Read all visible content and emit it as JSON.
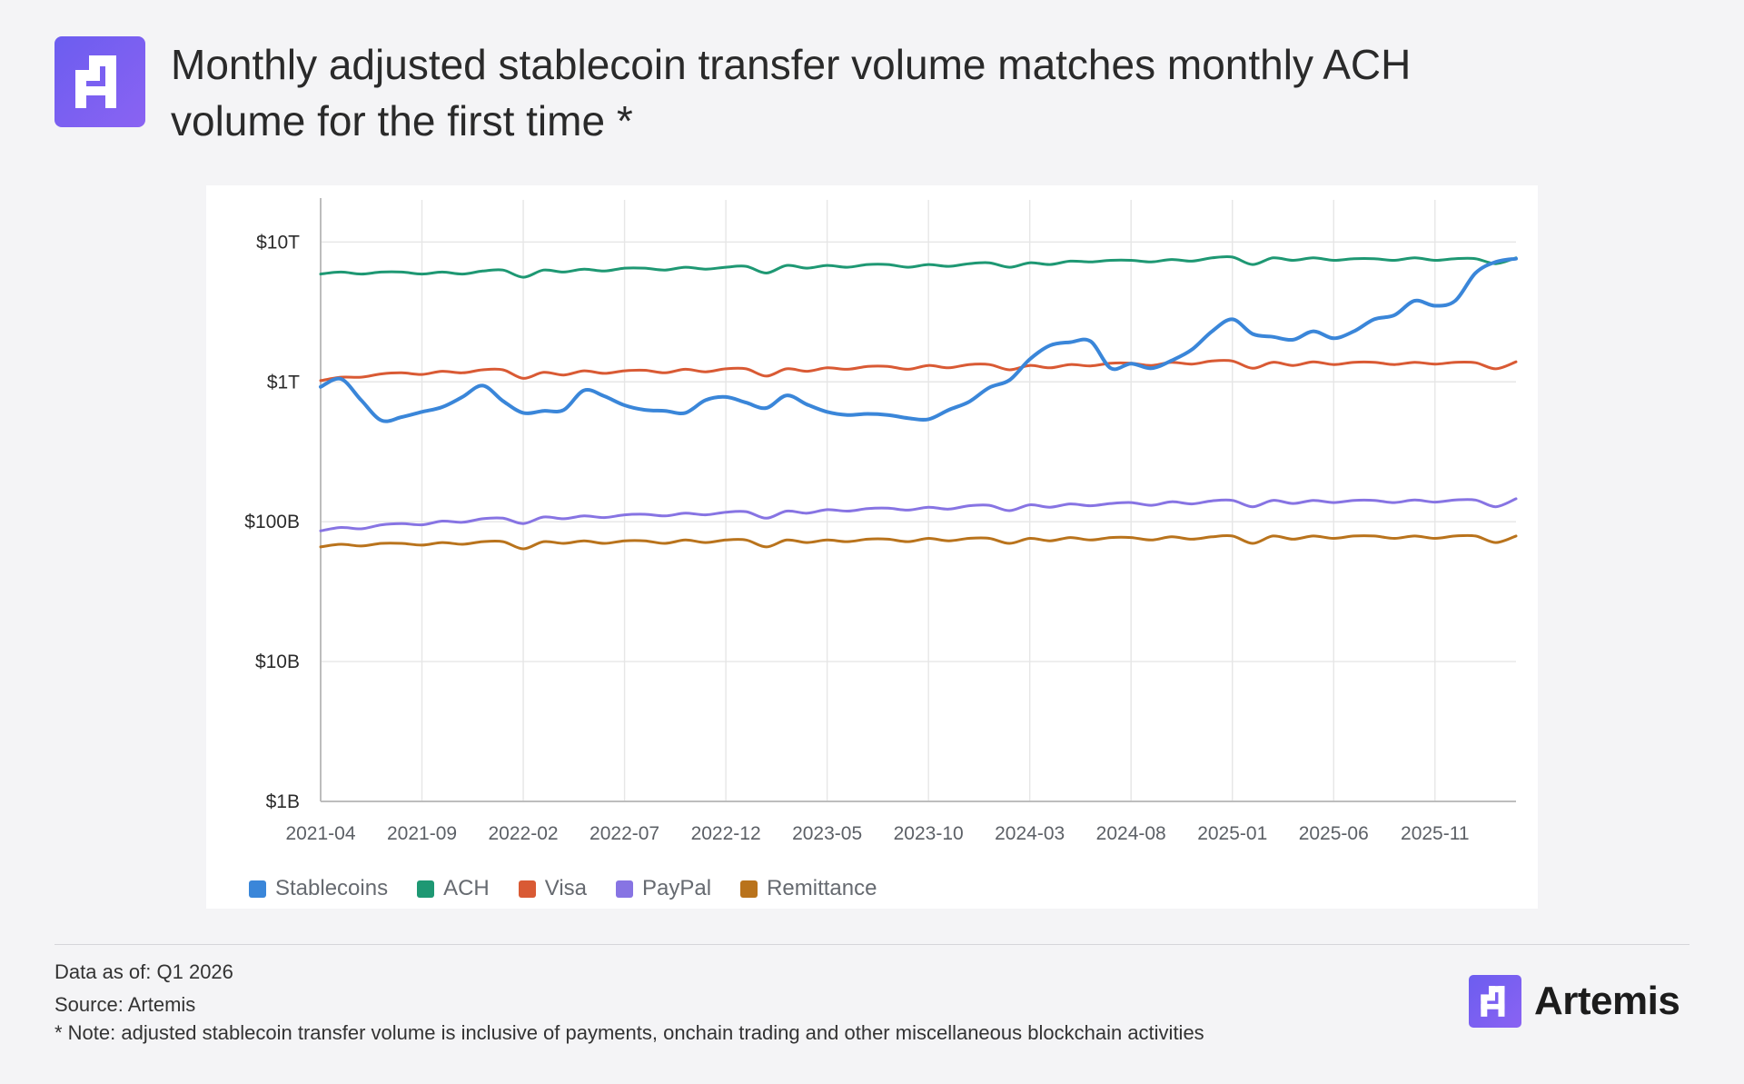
{
  "header": {
    "title": "Monthly adjusted stablecoin transfer volume matches monthly ACH\n volume for the first time *"
  },
  "brand": {
    "name": "Artemis",
    "accent": "#7b5cf0"
  },
  "footer": {
    "data_as_of": "Data as of: Q1 2026",
    "source": "Source: Artemis",
    "note": "* Note: adjusted stablecoin transfer volume is inclusive of payments, onchain trading and other miscellaneous blockchain activities"
  },
  "chart_data": {
    "type": "line",
    "title": "Monthly adjusted stablecoin transfer volume matches monthly ACH volume for the first time *",
    "xlabel": "",
    "ylabel": "",
    "y_scale": "log",
    "ylim": [
      1000000000,
      20000000000000
    ],
    "grid": true,
    "legend_position": "bottom-left",
    "y_ticks": [
      {
        "value": 1000000000,
        "label": "$1B"
      },
      {
        "value": 10000000000,
        "label": "$10B"
      },
      {
        "value": 100000000000,
        "label": "$100B"
      },
      {
        "value": 1000000000000,
        "label": "$1T"
      },
      {
        "value": 10000000000000,
        "label": "$10T"
      }
    ],
    "x_tick_labels": [
      "2021-04",
      "2021-09",
      "2022-02",
      "2022-07",
      "2022-12",
      "2023-05",
      "2023-10",
      "2024-03",
      "2024-08",
      "2025-01",
      "2025-06",
      "2025-11"
    ],
    "x": [
      "2021-04",
      "2021-05",
      "2021-06",
      "2021-07",
      "2021-08",
      "2021-09",
      "2021-10",
      "2021-11",
      "2021-12",
      "2022-01",
      "2022-02",
      "2022-03",
      "2022-04",
      "2022-05",
      "2022-06",
      "2022-07",
      "2022-08",
      "2022-09",
      "2022-10",
      "2022-11",
      "2022-12",
      "2023-01",
      "2023-02",
      "2023-03",
      "2023-04",
      "2023-05",
      "2023-06",
      "2023-07",
      "2023-08",
      "2023-09",
      "2023-10",
      "2023-11",
      "2023-12",
      "2024-01",
      "2024-02",
      "2024-03",
      "2024-04",
      "2024-05",
      "2024-06",
      "2024-07",
      "2024-08",
      "2024-09",
      "2024-10",
      "2024-11",
      "2024-12",
      "2025-01",
      "2025-02",
      "2025-03",
      "2025-04",
      "2025-05",
      "2025-06",
      "2025-07",
      "2025-08",
      "2025-09",
      "2025-10",
      "2025-11",
      "2025-12",
      "2026-01",
      "2026-02",
      "2026-03"
    ],
    "series": [
      {
        "name": "Stablecoins",
        "color": "#3a86d9",
        "values": [
          920000000000.0,
          1050000000000.0,
          740000000000.0,
          530000000000.0,
          560000000000.0,
          610000000000.0,
          660000000000.0,
          780000000000.0,
          940000000000.0,
          730000000000.0,
          600000000000.0,
          620000000000.0,
          630000000000.0,
          870000000000.0,
          790000000000.0,
          680000000000.0,
          630000000000.0,
          620000000000.0,
          600000000000.0,
          740000000000.0,
          780000000000.0,
          710000000000.0,
          650000000000.0,
          800000000000.0,
          690000000000.0,
          610000000000.0,
          580000000000.0,
          590000000000.0,
          580000000000.0,
          550000000000.0,
          540000000000.0,
          630000000000.0,
          720000000000.0,
          910000000000.0,
          1030000000000.0,
          1450000000000.0,
          1820000000000.0,
          1920000000000.0,
          1950000000000.0,
          1250000000000.0,
          1350000000000.0,
          1250000000000.0,
          1420000000000.0,
          1700000000000.0,
          2300000000000.0,
          2800000000000.0,
          2200000000000.0,
          2100000000000.0,
          2000000000000.0,
          2300000000000.0,
          2050000000000.0,
          2300000000000.0,
          2800000000000.0,
          3000000000000.0,
          3800000000000.0,
          3500000000000.0,
          3800000000000.0,
          6000000000000.0,
          7200000000000.0,
          7600000000000.0
        ]
      },
      {
        "name": "ACH",
        "color": "#1e9873",
        "values": [
          5900000000000.0,
          6100000000000.0,
          5900000000000.0,
          6100000000000.0,
          6100000000000.0,
          5900000000000.0,
          6100000000000.0,
          5900000000000.0,
          6200000000000.0,
          6300000000000.0,
          5600000000000.0,
          6300000000000.0,
          6100000000000.0,
          6400000000000.0,
          6200000000000.0,
          6500000000000.0,
          6500000000000.0,
          6300000000000.0,
          6600000000000.0,
          6400000000000.0,
          6600000000000.0,
          6700000000000.0,
          6000000000000.0,
          6800000000000.0,
          6500000000000.0,
          6800000000000.0,
          6600000000000.0,
          6900000000000.0,
          6900000000000.0,
          6600000000000.0,
          6900000000000.0,
          6700000000000.0,
          7000000000000.0,
          7100000000000.0,
          6600000000000.0,
          7100000000000.0,
          6900000000000.0,
          7300000000000.0,
          7200000000000.0,
          7400000000000.0,
          7400000000000.0,
          7200000000000.0,
          7500000000000.0,
          7300000000000.0,
          7700000000000.0,
          7800000000000.0,
          6900000000000.0,
          7700000000000.0,
          7400000000000.0,
          7700000000000.0,
          7400000000000.0,
          7600000000000.0,
          7600000000000.0,
          7400000000000.0,
          7700000000000.0,
          7400000000000.0,
          7600000000000.0,
          7600000000000.0,
          7000000000000.0,
          7700000000000.0
        ]
      },
      {
        "name": "Visa",
        "color": "#d95a34",
        "values": [
          1020000000000.0,
          1080000000000.0,
          1080000000000.0,
          1140000000000.0,
          1160000000000.0,
          1130000000000.0,
          1190000000000.0,
          1160000000000.0,
          1220000000000.0,
          1220000000000.0,
          1060000000000.0,
          1170000000000.0,
          1120000000000.0,
          1200000000000.0,
          1150000000000.0,
          1200000000000.0,
          1210000000000.0,
          1160000000000.0,
          1230000000000.0,
          1180000000000.0,
          1240000000000.0,
          1240000000000.0,
          1100000000000.0,
          1240000000000.0,
          1190000000000.0,
          1260000000000.0,
          1230000000000.0,
          1290000000000.0,
          1290000000000.0,
          1230000000000.0,
          1310000000000.0,
          1260000000000.0,
          1330000000000.0,
          1330000000000.0,
          1220000000000.0,
          1310000000000.0,
          1260000000000.0,
          1330000000000.0,
          1300000000000.0,
          1360000000000.0,
          1360000000000.0,
          1310000000000.0,
          1380000000000.0,
          1340000000000.0,
          1410000000000.0,
          1410000000000.0,
          1250000000000.0,
          1380000000000.0,
          1310000000000.0,
          1390000000000.0,
          1330000000000.0,
          1380000000000.0,
          1380000000000.0,
          1330000000000.0,
          1380000000000.0,
          1340000000000.0,
          1380000000000.0,
          1370000000000.0,
          1240000000000.0,
          1390000000000.0
        ]
      },
      {
        "name": "PayPal",
        "color": "#8774e3",
        "values": [
          86000000000.0,
          91000000000.0,
          89000000000.0,
          95000000000.0,
          97000000000.0,
          95000000000.0,
          101000000000.0,
          99000000000.0,
          105000000000.0,
          106000000000.0,
          97000000000.0,
          108000000000.0,
          105000000000.0,
          110000000000.0,
          107000000000.0,
          112000000000.0,
          113000000000.0,
          110000000000.0,
          115000000000.0,
          112000000000.0,
          117000000000.0,
          118000000000.0,
          106000000000.0,
          119000000000.0,
          115000000000.0,
          122000000000.0,
          119000000000.0,
          124000000000.0,
          125000000000.0,
          121000000000.0,
          127000000000.0,
          123000000000.0,
          130000000000.0,
          131000000000.0,
          120000000000.0,
          132000000000.0,
          127000000000.0,
          134000000000.0,
          130000000000.0,
          135000000000.0,
          137000000000.0,
          131000000000.0,
          139000000000.0,
          134000000000.0,
          141000000000.0,
          142000000000.0,
          128000000000.0,
          142000000000.0,
          135000000000.0,
          142000000000.0,
          137000000000.0,
          142000000000.0,
          142000000000.0,
          137000000000.0,
          143000000000.0,
          138000000000.0,
          143000000000.0,
          143000000000.0,
          128000000000.0,
          146000000000.0
        ]
      },
      {
        "name": "Remittance",
        "color": "#b9731c",
        "values": [
          66000000000.0,
          69000000000.0,
          67000000000.0,
          70000000000.0,
          70000000000.0,
          68000000000.0,
          71000000000.0,
          69000000000.0,
          72000000000.0,
          72000000000.0,
          64000000000.0,
          72000000000.0,
          70000000000.0,
          73000000000.0,
          70000000000.0,
          73000000000.0,
          73000000000.0,
          70000000000.0,
          74000000000.0,
          71000000000.0,
          74000000000.0,
          74000000000.0,
          66000000000.0,
          74000000000.0,
          71000000000.0,
          74000000000.0,
          72000000000.0,
          75000000000.0,
          75000000000.0,
          72000000000.0,
          76000000000.0,
          73000000000.0,
          76000000000.0,
          76000000000.0,
          70000000000.0,
          76000000000.0,
          73000000000.0,
          77000000000.0,
          74000000000.0,
          77000000000.0,
          77000000000.0,
          74000000000.0,
          78000000000.0,
          75000000000.0,
          78000000000.0,
          79000000000.0,
          70000000000.0,
          79000000000.0,
          75000000000.0,
          79000000000.0,
          76000000000.0,
          79000000000.0,
          79000000000.0,
          76000000000.0,
          79000000000.0,
          76000000000.0,
          79000000000.0,
          79000000000.0,
          71000000000.0,
          79000000000.0
        ]
      }
    ]
  }
}
